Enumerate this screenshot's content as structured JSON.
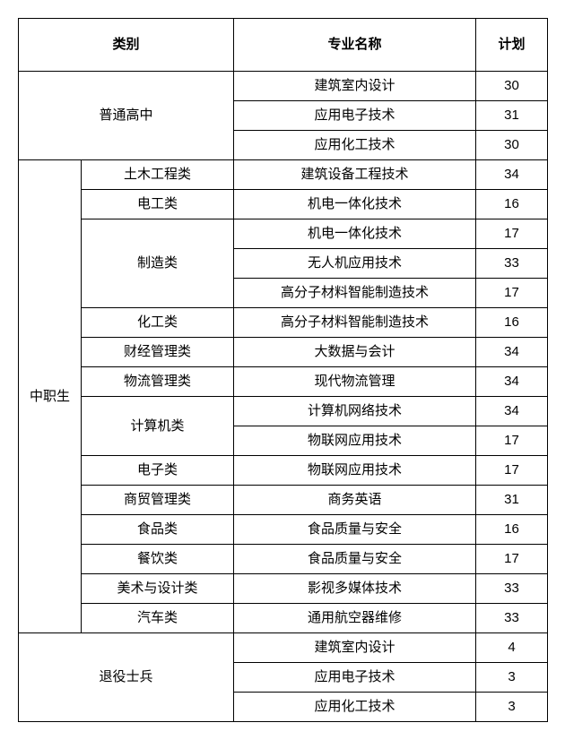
{
  "headers": {
    "category": "类别",
    "major": "专业名称",
    "plan": "计划"
  },
  "groups": [
    {
      "label": "普通高中",
      "subcategories": [
        {
          "label": null,
          "rows": [
            {
              "major": "建筑室内设计",
              "plan": "30"
            },
            {
              "major": "应用电子技术",
              "plan": "31"
            },
            {
              "major": "应用化工技术",
              "plan": "30"
            }
          ]
        }
      ]
    },
    {
      "label": "中职生",
      "subcategories": [
        {
          "label": "土木工程类",
          "rows": [
            {
              "major": "建筑设备工程技术",
              "plan": "34"
            }
          ]
        },
        {
          "label": "电工类",
          "rows": [
            {
              "major": "机电一体化技术",
              "plan": "16"
            }
          ]
        },
        {
          "label": "制造类",
          "rows": [
            {
              "major": "机电一体化技术",
              "plan": "17"
            },
            {
              "major": "无人机应用技术",
              "plan": "33"
            },
            {
              "major": "高分子材料智能制造技术",
              "plan": "17"
            }
          ]
        },
        {
          "label": "化工类",
          "rows": [
            {
              "major": "高分子材料智能制造技术",
              "plan": "16"
            }
          ]
        },
        {
          "label": "财经管理类",
          "rows": [
            {
              "major": "大数据与会计",
              "plan": "34"
            }
          ]
        },
        {
          "label": "物流管理类",
          "rows": [
            {
              "major": "现代物流管理",
              "plan": "34"
            }
          ]
        },
        {
          "label": "计算机类",
          "rows": [
            {
              "major": "计算机网络技术",
              "plan": "34"
            },
            {
              "major": "物联网应用技术",
              "plan": "17"
            }
          ]
        },
        {
          "label": "电子类",
          "rows": [
            {
              "major": "物联网应用技术",
              "plan": "17"
            }
          ]
        },
        {
          "label": "商贸管理类",
          "rows": [
            {
              "major": "商务英语",
              "plan": "31"
            }
          ]
        },
        {
          "label": "食品类",
          "rows": [
            {
              "major": "食品质量与安全",
              "plan": "16"
            }
          ]
        },
        {
          "label": "餐饮类",
          "rows": [
            {
              "major": "食品质量与安全",
              "plan": "17"
            }
          ]
        },
        {
          "label": "美术与设计类",
          "rows": [
            {
              "major": "影视多媒体技术",
              "plan": "33"
            }
          ]
        },
        {
          "label": "汽车类",
          "rows": [
            {
              "major": "通用航空器维修",
              "plan": "33"
            }
          ]
        }
      ]
    },
    {
      "label": "退役士兵",
      "subcategories": [
        {
          "label": null,
          "rows": [
            {
              "major": "建筑室内设计",
              "plan": "4"
            },
            {
              "major": "应用电子技术",
              "plan": "3"
            },
            {
              "major": "应用化工技术",
              "plan": "3"
            }
          ]
        }
      ]
    }
  ]
}
